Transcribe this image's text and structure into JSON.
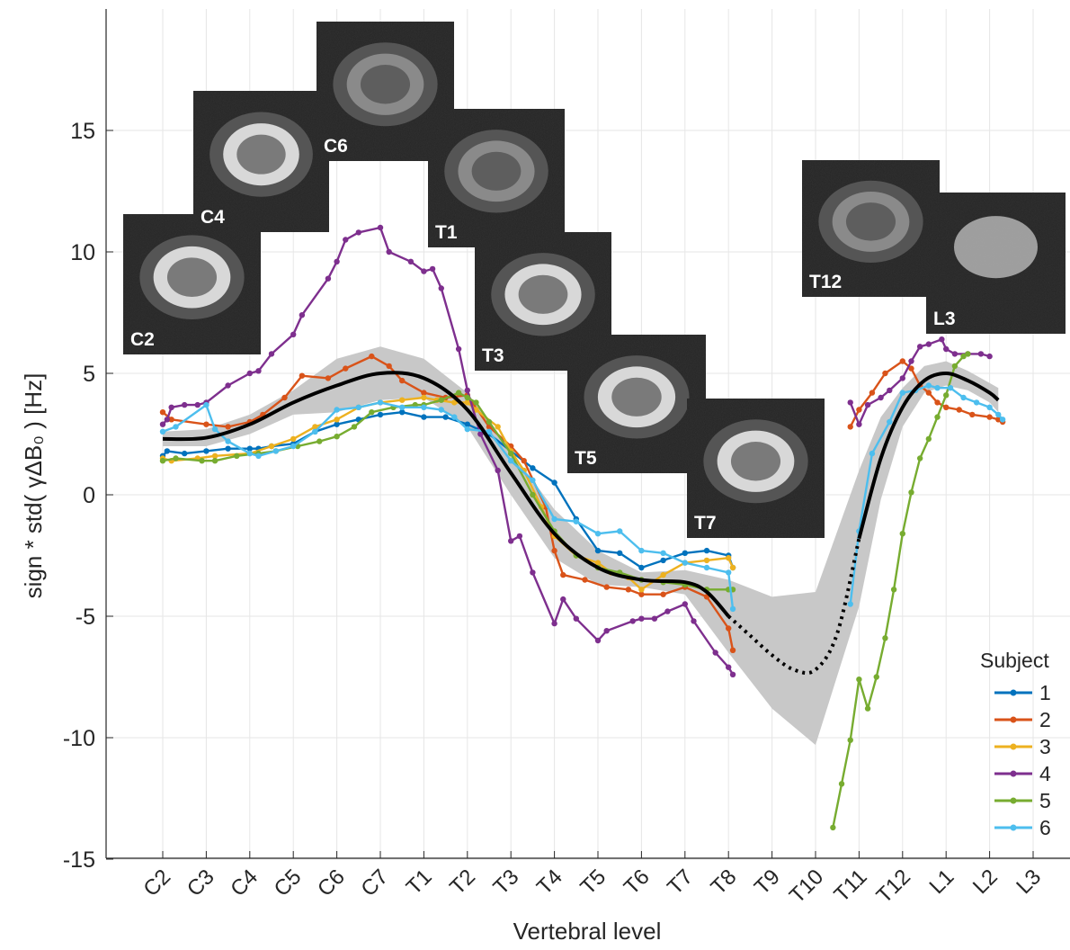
{
  "chart_data": {
    "type": "line",
    "xlabel": "Vertebral level",
    "ylabel": "sign * std( γΔB₀ ) [Hz]",
    "ylim": [
      -15,
      20
    ],
    "yticks": [
      -15,
      -10,
      -5,
      0,
      5,
      10,
      15
    ],
    "xlim": [
      -0.3,
      20.4
    ],
    "categories": [
      "C2",
      "C3",
      "C4",
      "C5",
      "C6",
      "C7",
      "T1",
      "T2",
      "T3",
      "T4",
      "T5",
      "T6",
      "T7",
      "T8",
      "T9",
      "T10",
      "T11",
      "T12",
      "L1",
      "L2",
      "L3"
    ],
    "grid": true,
    "legend": {
      "title": "Subject",
      "position": "bottom-right"
    },
    "series": [
      {
        "name": "1",
        "color": "#0072BD",
        "points": [
          [
            0,
            1.6
          ],
          [
            0.1,
            1.8
          ],
          [
            0.5,
            1.7
          ],
          [
            1,
            1.8
          ],
          [
            1.5,
            1.9
          ],
          [
            2,
            1.9
          ],
          [
            2.2,
            1.9
          ],
          [
            2.5,
            2
          ],
          [
            3,
            2.1
          ],
          [
            3.5,
            2.6
          ],
          [
            4,
            2.9
          ],
          [
            4.5,
            3.1
          ],
          [
            5,
            3.3
          ],
          [
            5.5,
            3.4
          ],
          [
            6,
            3.2
          ],
          [
            6.5,
            3.2
          ],
          [
            7,
            2.9
          ],
          [
            7.5,
            2.5
          ],
          [
            8,
            1.8
          ],
          [
            8.5,
            1.1
          ],
          [
            9,
            0.5
          ],
          [
            9.5,
            -1
          ],
          [
            10,
            -2.3
          ],
          [
            10.5,
            -2.4
          ],
          [
            11,
            -3
          ],
          [
            11.5,
            -2.7
          ],
          [
            12,
            -2.4
          ],
          [
            12.5,
            -2.3
          ],
          [
            13,
            -2.5
          ],
          [
            13.1,
            -3
          ]
        ]
      },
      {
        "name": "2",
        "color": "#D95319",
        "points": [
          [
            0,
            3.4
          ],
          [
            0.2,
            3.1
          ],
          [
            1,
            2.9
          ],
          [
            1.5,
            2.8
          ],
          [
            2,
            3
          ],
          [
            2.3,
            3.3
          ],
          [
            2.8,
            4
          ],
          [
            3.2,
            4.9
          ],
          [
            3.8,
            4.8
          ],
          [
            4.2,
            5.2
          ],
          [
            4.8,
            5.7
          ],
          [
            5.2,
            5.3
          ],
          [
            5.5,
            4.7
          ],
          [
            6,
            4.2
          ],
          [
            6.5,
            4
          ],
          [
            7,
            4.1
          ],
          [
            7.5,
            2.8
          ],
          [
            8,
            2
          ],
          [
            8.3,
            1.4
          ],
          [
            8.8,
            -0.5
          ],
          [
            9,
            -2.3
          ],
          [
            9.2,
            -3.3
          ],
          [
            9.7,
            -3.5
          ],
          [
            10.2,
            -3.8
          ],
          [
            10.7,
            -3.9
          ],
          [
            11,
            -4.1
          ],
          [
            11.5,
            -4.1
          ],
          [
            12,
            -3.8
          ],
          [
            12.5,
            -4.2
          ],
          [
            13,
            -5.5
          ],
          [
            13.1,
            -6.4
          ],
          [
            15.8,
            2.8
          ],
          [
            16,
            3.5
          ],
          [
            16.3,
            4.2
          ],
          [
            16.6,
            5
          ],
          [
            17,
            5.5
          ],
          [
            17.2,
            5.2
          ],
          [
            17.4,
            4.5
          ],
          [
            17.6,
            4.2
          ],
          [
            17.8,
            3.8
          ],
          [
            18,
            3.6
          ],
          [
            18.3,
            3.5
          ],
          [
            18.6,
            3.3
          ],
          [
            19,
            3.2
          ],
          [
            19.2,
            3.1
          ],
          [
            19.3,
            3
          ]
        ]
      },
      {
        "name": "3",
        "color": "#EDB120",
        "points": [
          [
            0,
            1.5
          ],
          [
            0.2,
            1.4
          ],
          [
            0.8,
            1.5
          ],
          [
            1.2,
            1.6
          ],
          [
            2,
            1.7
          ],
          [
            2.5,
            2
          ],
          [
            3,
            2.3
          ],
          [
            3.5,
            2.8
          ],
          [
            4,
            3.1
          ],
          [
            4.5,
            3.6
          ],
          [
            5,
            3.8
          ],
          [
            5.5,
            3.9
          ],
          [
            6,
            4
          ],
          [
            6.3,
            3.9
          ],
          [
            6.7,
            3.8
          ],
          [
            7,
            3.8
          ],
          [
            7.2,
            3.5
          ],
          [
            7.7,
            2.8
          ],
          [
            8,
            1.8
          ],
          [
            8.3,
            1
          ],
          [
            8.7,
            -0.5
          ],
          [
            9,
            -1.7
          ],
          [
            9.5,
            -2.5
          ],
          [
            10,
            -2.8
          ],
          [
            10.3,
            -3.2
          ],
          [
            10.7,
            -3.4
          ],
          [
            11,
            -3.9
          ],
          [
            11.5,
            -3.3
          ],
          [
            12,
            -2.8
          ],
          [
            12.5,
            -2.7
          ],
          [
            13,
            -2.6
          ],
          [
            13.1,
            -3
          ]
        ]
      },
      {
        "name": "4",
        "color": "#7E2F8E",
        "points": [
          [
            0,
            2.9
          ],
          [
            0.1,
            3.1
          ],
          [
            0.2,
            3.6
          ],
          [
            0.5,
            3.7
          ],
          [
            0.8,
            3.7
          ],
          [
            1,
            3.8
          ],
          [
            1.5,
            4.5
          ],
          [
            2,
            5
          ],
          [
            2.2,
            5.1
          ],
          [
            2.5,
            5.8
          ],
          [
            3,
            6.6
          ],
          [
            3.2,
            7.4
          ],
          [
            3.8,
            8.9
          ],
          [
            4,
            9.6
          ],
          [
            4.2,
            10.5
          ],
          [
            4.5,
            10.8
          ],
          [
            5,
            11
          ],
          [
            5.2,
            10
          ],
          [
            5.7,
            9.6
          ],
          [
            6,
            9.2
          ],
          [
            6.2,
            9.3
          ],
          [
            6.4,
            8.5
          ],
          [
            6.8,
            6
          ],
          [
            7,
            4.3
          ],
          [
            7.3,
            2.5
          ],
          [
            7.7,
            1
          ],
          [
            8,
            -1.9
          ],
          [
            8.2,
            -1.7
          ],
          [
            8.5,
            -3.2
          ],
          [
            9,
            -5.3
          ],
          [
            9.2,
            -4.3
          ],
          [
            9.5,
            -5.1
          ],
          [
            10,
            -6
          ],
          [
            10.2,
            -5.6
          ],
          [
            10.8,
            -5.2
          ],
          [
            11,
            -5.1
          ],
          [
            11.3,
            -5.1
          ],
          [
            11.6,
            -4.8
          ],
          [
            12,
            -4.5
          ],
          [
            12.2,
            -5.2
          ],
          [
            12.7,
            -6.5
          ],
          [
            13,
            -7.1
          ],
          [
            13.1,
            -7.4
          ],
          [
            15.8,
            3.8
          ],
          [
            16,
            2.9
          ],
          [
            16.2,
            3.7
          ],
          [
            16.5,
            4
          ],
          [
            16.7,
            4.3
          ],
          [
            17,
            4.8
          ],
          [
            17.2,
            5.5
          ],
          [
            17.4,
            6.1
          ],
          [
            17.6,
            6.2
          ],
          [
            17.9,
            6.4
          ],
          [
            18,
            6
          ],
          [
            18.2,
            5.8
          ],
          [
            18.5,
            5.8
          ],
          [
            18.8,
            5.8
          ],
          [
            19,
            5.7
          ]
        ]
      },
      {
        "name": "5",
        "color": "#77AC30",
        "points": [
          [
            0,
            1.4
          ],
          [
            0.3,
            1.5
          ],
          [
            0.9,
            1.4
          ],
          [
            1.2,
            1.4
          ],
          [
            1.7,
            1.6
          ],
          [
            2.2,
            1.7
          ],
          [
            2.6,
            1.8
          ],
          [
            3.1,
            2
          ],
          [
            3.6,
            2.2
          ],
          [
            4,
            2.4
          ],
          [
            4.4,
            2.8
          ],
          [
            4.8,
            3.4
          ],
          [
            5.3,
            3.6
          ],
          [
            5.8,
            3.7
          ],
          [
            6,
            3.7
          ],
          [
            6.4,
            3.9
          ],
          [
            6.8,
            4.2
          ],
          [
            7,
            4
          ],
          [
            7.2,
            3.8
          ],
          [
            7.5,
            3
          ],
          [
            8,
            1.7
          ],
          [
            8.5,
            0
          ],
          [
            9,
            -1.5
          ],
          [
            9.5,
            -2.5
          ],
          [
            10,
            -3
          ],
          [
            10.5,
            -3.2
          ],
          [
            11,
            -3.5
          ],
          [
            11.5,
            -3.6
          ],
          [
            12,
            -3.7
          ],
          [
            12.5,
            -3.9
          ],
          [
            13,
            -3.9
          ],
          [
            13.1,
            -3.9
          ],
          [
            15.4,
            -13.7
          ],
          [
            15.6,
            -11.9
          ],
          [
            15.8,
            -10.1
          ],
          [
            16,
            -7.6
          ],
          [
            16.2,
            -8.8
          ],
          [
            16.4,
            -7.5
          ],
          [
            16.6,
            -5.9
          ],
          [
            16.8,
            -3.9
          ],
          [
            17,
            -1.6
          ],
          [
            17.2,
            0.1
          ],
          [
            17.4,
            1.5
          ],
          [
            17.6,
            2.3
          ],
          [
            17.8,
            3.2
          ],
          [
            18,
            4.1
          ],
          [
            18.2,
            5.3
          ],
          [
            18.4,
            5.7
          ],
          [
            18.5,
            5.8
          ]
        ]
      },
      {
        "name": "6",
        "color": "#4DBEEE",
        "points": [
          [
            0,
            2.6
          ],
          [
            0.3,
            2.8
          ],
          [
            1,
            3.7
          ],
          [
            1.2,
            2.7
          ],
          [
            1.5,
            2.2
          ],
          [
            2,
            1.7
          ],
          [
            2.2,
            1.6
          ],
          [
            2.6,
            1.8
          ],
          [
            3,
            2
          ],
          [
            3.5,
            2.6
          ],
          [
            4,
            3.5
          ],
          [
            4.5,
            3.6
          ],
          [
            5,
            3.8
          ],
          [
            5.5,
            3.6
          ],
          [
            6,
            3.6
          ],
          [
            6.4,
            3.5
          ],
          [
            6.7,
            3.2
          ],
          [
            7,
            2.7
          ],
          [
            7.5,
            2.6
          ],
          [
            8,
            1.4
          ],
          [
            8.5,
            0.6
          ],
          [
            9,
            -1
          ],
          [
            9.5,
            -1.1
          ],
          [
            10,
            -1.6
          ],
          [
            10.5,
            -1.5
          ],
          [
            11,
            -2.3
          ],
          [
            11.5,
            -2.4
          ],
          [
            12,
            -2.8
          ],
          [
            12.5,
            -3
          ],
          [
            13,
            -3.2
          ],
          [
            13.1,
            -4.7
          ],
          [
            15.8,
            -4.5
          ],
          [
            16,
            -1.5
          ],
          [
            16.3,
            1.7
          ],
          [
            16.7,
            3
          ],
          [
            17,
            4.2
          ],
          [
            17.3,
            4.3
          ],
          [
            17.6,
            4.5
          ],
          [
            17.8,
            4.4
          ],
          [
            18.1,
            4.4
          ],
          [
            18.4,
            4
          ],
          [
            18.7,
            3.8
          ],
          [
            19,
            3.6
          ],
          [
            19.2,
            3.3
          ],
          [
            19.3,
            3.1
          ]
        ]
      }
    ],
    "mean_curve": {
      "color": "#000000",
      "solid": [
        [
          0,
          2.3
        ],
        [
          1,
          2.35
        ],
        [
          2,
          2.9
        ],
        [
          3,
          3.8
        ],
        [
          4,
          4.5
        ],
        [
          5,
          5
        ],
        [
          6,
          4.8
        ],
        [
          7,
          3.5
        ],
        [
          8,
          0.9
        ],
        [
          9,
          -1.6
        ],
        [
          10,
          -3
        ],
        [
          11,
          -3.5
        ],
        [
          12,
          -3.6
        ],
        [
          12.5,
          -4
        ],
        [
          13,
          -5
        ]
      ],
      "dotted": [
        [
          13,
          -5
        ],
        [
          13.5,
          -5.8
        ],
        [
          14,
          -6.6
        ],
        [
          14.5,
          -7.2
        ],
        [
          15,
          -7.2
        ],
        [
          15.5,
          -5.7
        ],
        [
          16,
          -1.8
        ]
      ],
      "solid2": [
        [
          16,
          -1.8
        ],
        [
          16.5,
          1.5
        ],
        [
          17,
          3.6
        ],
        [
          17.5,
          4.7
        ],
        [
          18,
          5
        ],
        [
          18.5,
          4.7
        ],
        [
          19,
          4.2
        ],
        [
          19.2,
          3.9
        ]
      ]
    },
    "confidence_band": {
      "color": "#C8C8C8",
      "x": [
        0,
        1,
        2,
        3,
        4,
        5,
        6,
        7,
        8,
        9,
        10,
        11,
        12,
        13,
        14,
        15,
        16,
        16.5,
        17,
        17.5,
        18,
        18.5,
        19,
        19.2
      ],
      "upper": [
        2.6,
        2.7,
        3.3,
        4.3,
        5.6,
        6.1,
        5.6,
        4.2,
        1.8,
        -0.6,
        -2.3,
        -3.2,
        -3.1,
        -3.5,
        -4.2,
        -4.0,
        1.0,
        3.2,
        4.4,
        5.3,
        5.5,
        5.1,
        4.6,
        4.4
      ],
      "lower": [
        2.0,
        2.0,
        2.5,
        3.3,
        3.4,
        3.9,
        4.0,
        2.8,
        0.0,
        -2.6,
        -3.7,
        -3.8,
        -4.1,
        -6.5,
        -8.8,
        -10.3,
        -4.6,
        -0.2,
        2.8,
        4.2,
        4.5,
        4.3,
        3.8,
        3.4
      ]
    },
    "mri_insets": [
      {
        "label": "C2"
      },
      {
        "label": "C4"
      },
      {
        "label": "C6"
      },
      {
        "label": "T1"
      },
      {
        "label": "T3"
      },
      {
        "label": "T5"
      },
      {
        "label": "T7"
      },
      {
        "label": "T12"
      },
      {
        "label": "L3"
      }
    ]
  }
}
